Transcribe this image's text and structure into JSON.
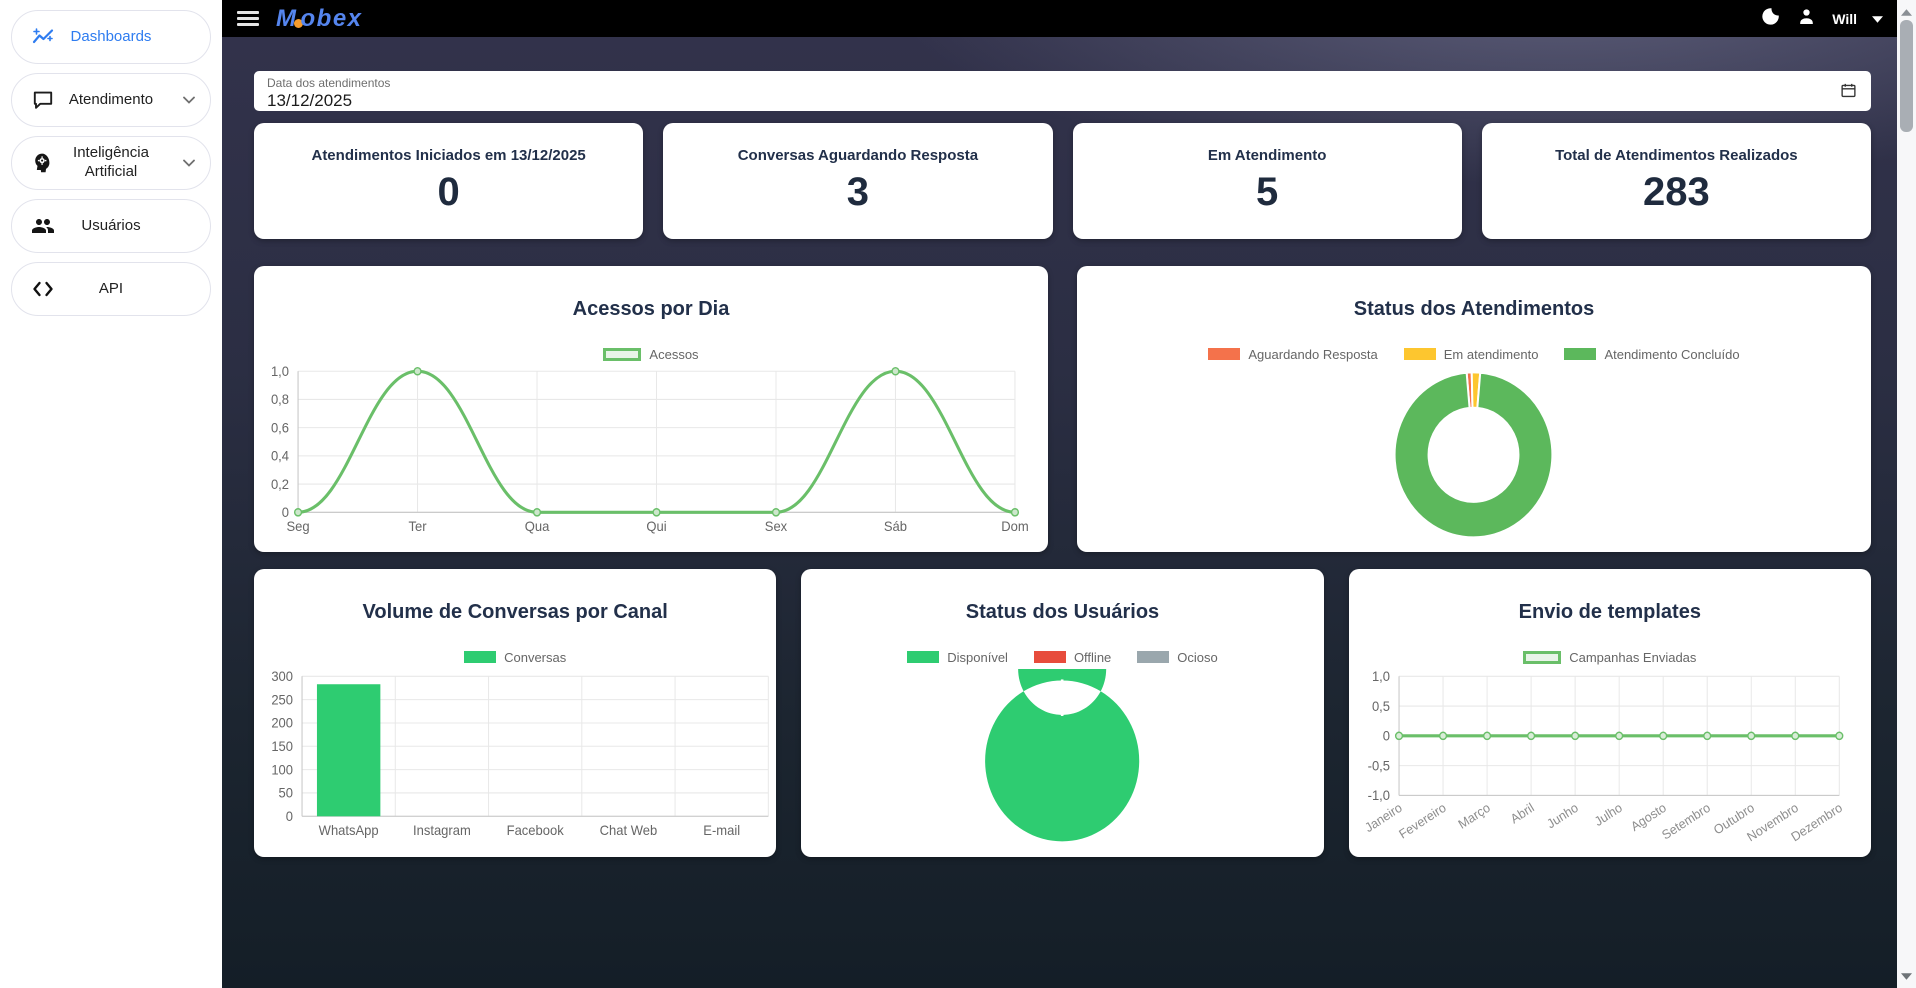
{
  "header": {
    "brand": "Mobex",
    "user_name": "Will"
  },
  "sidebar": {
    "items": [
      {
        "label": "Dashboards",
        "icon": "insights-icon",
        "active": true,
        "expandable": false
      },
      {
        "label": "Atendimento",
        "icon": "chat-icon",
        "active": false,
        "expandable": true
      },
      {
        "label": "Inteligência Artificial",
        "icon": "ai-head-icon",
        "active": false,
        "expandable": true
      },
      {
        "label": "Usuários",
        "icon": "users-icon",
        "active": false,
        "expandable": false
      },
      {
        "label": "API",
        "icon": "code-icon",
        "active": false,
        "expandable": false
      }
    ]
  },
  "filter": {
    "date_label": "Data dos atendimentos",
    "date_value": "13/12/2025"
  },
  "stats": [
    {
      "title": "Atendimentos Iniciados em 13/12/2025",
      "value": "0"
    },
    {
      "title": "Conversas Aguardando Resposta",
      "value": "3"
    },
    {
      "title": "Em Atendimento",
      "value": "5"
    },
    {
      "title": "Total de Atendimentos Realizados",
      "value": "283"
    }
  ],
  "colors": {
    "accent_blue": "#2e7cf0",
    "line_green": "#6abf69",
    "bright_green": "#2ecc71",
    "donut_green": "#5cb85c",
    "orange": "#f4724b",
    "yellow": "#fdc62f",
    "red": "#e74c3c",
    "idle_gray": "#9aa7ad"
  },
  "chart_data": [
    {
      "type": "line",
      "title": "Acessos por Dia",
      "legend": [
        "Acessos"
      ],
      "color": "#6abf69",
      "legend_fill": "#e9f4e9",
      "point_fill": "#cde7cc",
      "categories": [
        "Seg",
        "Ter",
        "Qua",
        "Qui",
        "Sex",
        "Sáb",
        "Dom"
      ],
      "values": [
        0,
        1,
        0,
        0,
        0,
        1,
        0
      ],
      "ylim": [
        0,
        1
      ],
      "grid": true,
      "legend_position": "top",
      "rotate_x_labels": false,
      "show_points": true,
      "yticks": [
        {
          "v": 1,
          "label": "1,0"
        },
        {
          "v": 0.8,
          "label": "0,8"
        },
        {
          "v": 0.6,
          "label": "0,6"
        },
        {
          "v": 0.4,
          "label": "0,4"
        },
        {
          "v": 0.2,
          "label": "0,2"
        },
        {
          "v": 0,
          "label": "0"
        }
      ]
    },
    {
      "type": "donut",
      "title": "Status dos Atendimentos",
      "legend_position": "top",
      "rotation_deg": -5,
      "segments": [
        {
          "label": "Aguardando Resposta",
          "value": 3,
          "color": "#f4724b"
        },
        {
          "label": "Em atendimento",
          "value": 5,
          "color": "#fdc62f"
        },
        {
          "label": "Atendimento Concluído",
          "value": 283,
          "color": "#5cb85c"
        }
      ]
    },
    {
      "type": "bar",
      "title": "Volume de Conversas por Canal",
      "legend": [
        "Conversas"
      ],
      "color": "#2ecc71",
      "categories": [
        "WhatsApp",
        "Instagram",
        "Facebook",
        "Chat Web",
        "E-mail"
      ],
      "values": [
        283,
        0,
        0,
        0,
        0
      ],
      "ylim": [
        0,
        300
      ],
      "grid": true,
      "legend_position": "top",
      "yticks": [
        {
          "v": 300,
          "label": "300"
        },
        {
          "v": 250,
          "label": "250"
        },
        {
          "v": 200,
          "label": "200"
        },
        {
          "v": 150,
          "label": "150"
        },
        {
          "v": 100,
          "label": "100"
        },
        {
          "v": 50,
          "label": "50"
        },
        {
          "v": 0,
          "label": "0"
        }
      ]
    },
    {
      "type": "donut",
      "title": "Status dos Usuários",
      "legend_position": "top",
      "rotation_deg": 0,
      "segments": [
        {
          "label": "Disponível",
          "value": 1,
          "color": "#2ecc71"
        },
        {
          "label": "Offline",
          "value": 0,
          "color": "#e74c3c"
        },
        {
          "label": "Ocioso",
          "value": 0,
          "color": "#9aa7ad"
        }
      ]
    },
    {
      "type": "line",
      "title": "Envio de templates",
      "legend": [
        "Campanhas Enviadas"
      ],
      "color": "#6abf69",
      "legend_fill": "#e9f4e9",
      "point_fill": "#d9edd8",
      "categories": [
        "Janeiro",
        "Fevereiro",
        "Março",
        "Abril",
        "Junho",
        "Julho",
        "Agosto",
        "Setembro",
        "Outubro",
        "Novembro",
        "Dezembro"
      ],
      "values": [
        0,
        0,
        0,
        0,
        0,
        0,
        0,
        0,
        0,
        0,
        0
      ],
      "ylim": [
        -1,
        1
      ],
      "grid": true,
      "legend_position": "top",
      "rotate_x_labels": true,
      "show_points": true,
      "yticks": [
        {
          "v": 1,
          "label": "1,0"
        },
        {
          "v": 0.5,
          "label": "0,5"
        },
        {
          "v": 0,
          "label": "0"
        },
        {
          "v": -0.5,
          "label": "-0,5"
        },
        {
          "v": -1,
          "label": "-1,0"
        }
      ]
    }
  ]
}
